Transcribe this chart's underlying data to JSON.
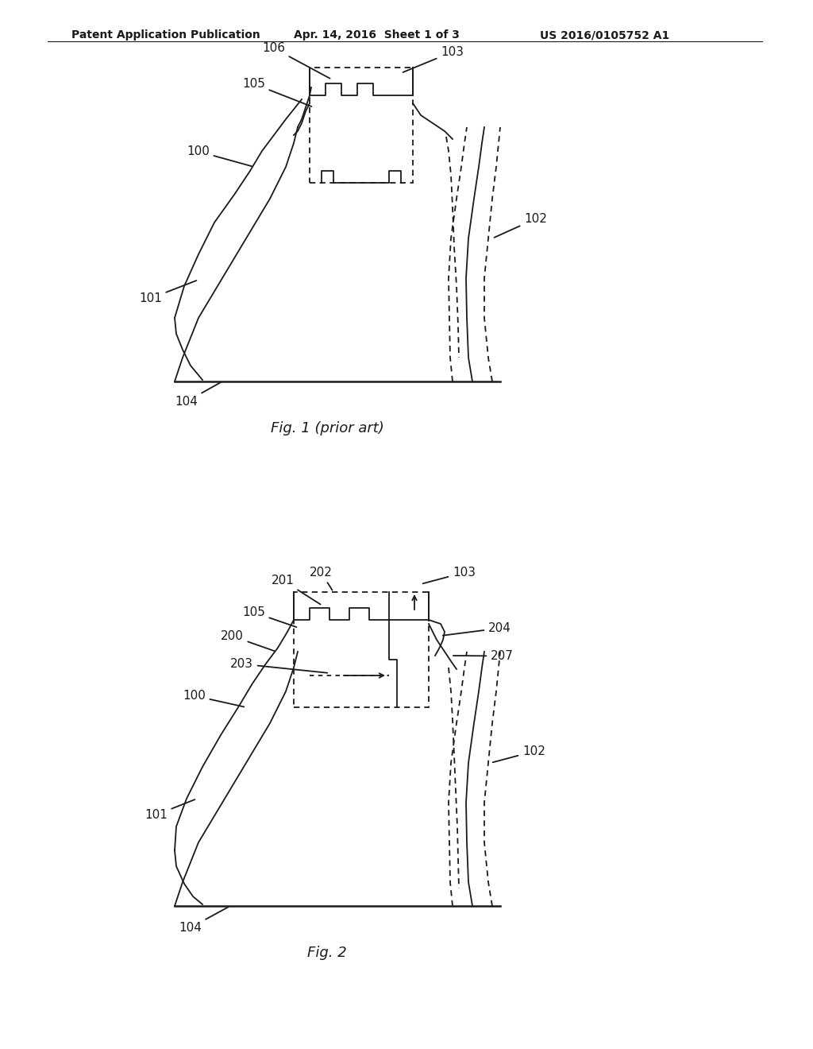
{
  "bg_color": "#ffffff",
  "header_text": "Patent Application Publication",
  "header_date": "Apr. 14, 2016  Sheet 1 of 3",
  "header_patent": "US 2016/0105752 A1",
  "fig1_caption": "Fig. 1 (prior art)",
  "fig2_caption": "Fig. 2",
  "line_color": "#1a1a1a",
  "dashed_color": "#555555",
  "label_fontsize": 11,
  "header_fontsize": 10
}
